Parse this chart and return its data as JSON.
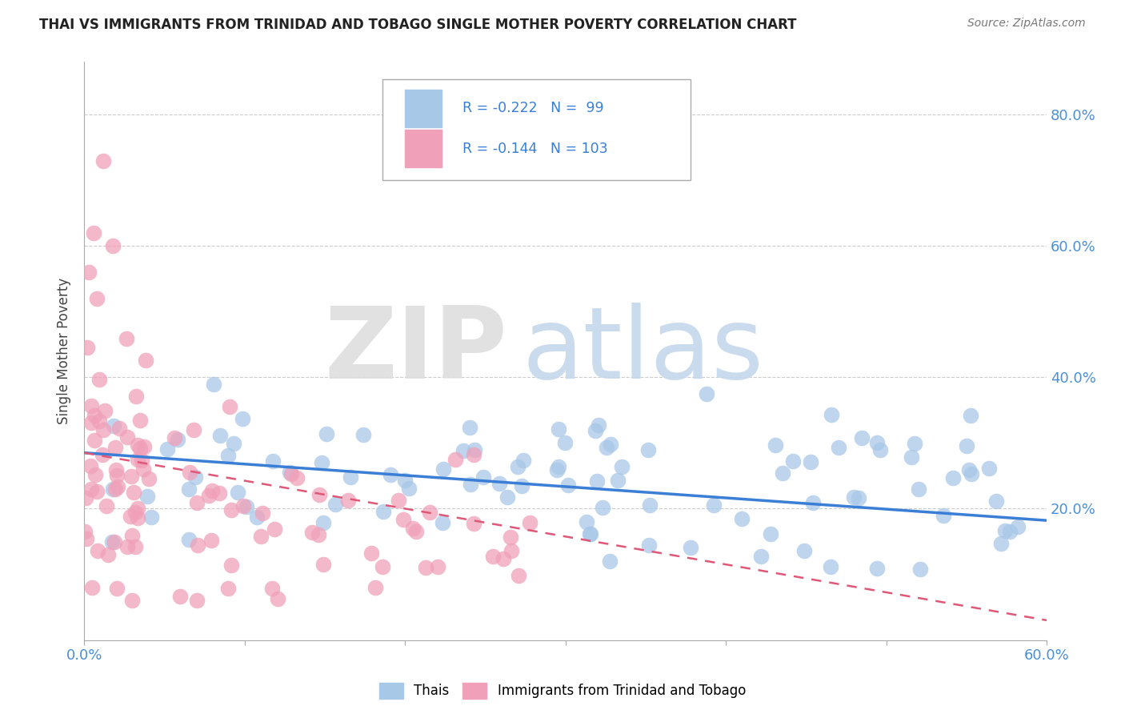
{
  "title": "THAI VS IMMIGRANTS FROM TRINIDAD AND TOBAGO SINGLE MOTHER POVERTY CORRELATION CHART",
  "source": "Source: ZipAtlas.com",
  "legend_blue_r": "-0.222",
  "legend_blue_n": "99",
  "legend_pink_r": "-0.144",
  "legend_pink_n": "103",
  "legend_blue_label": "Thais",
  "legend_pink_label": "Immigrants from Trinidad and Tobago",
  "blue_color": "#a8c8e8",
  "pink_color": "#f0a0b8",
  "line_blue_color": "#3a7fd5",
  "line_pink_color": "#e05878",
  "xlim": [
    0.0,
    0.6
  ],
  "ylim": [
    0.0,
    0.88
  ],
  "ylabel": "Single Mother Poverty"
}
